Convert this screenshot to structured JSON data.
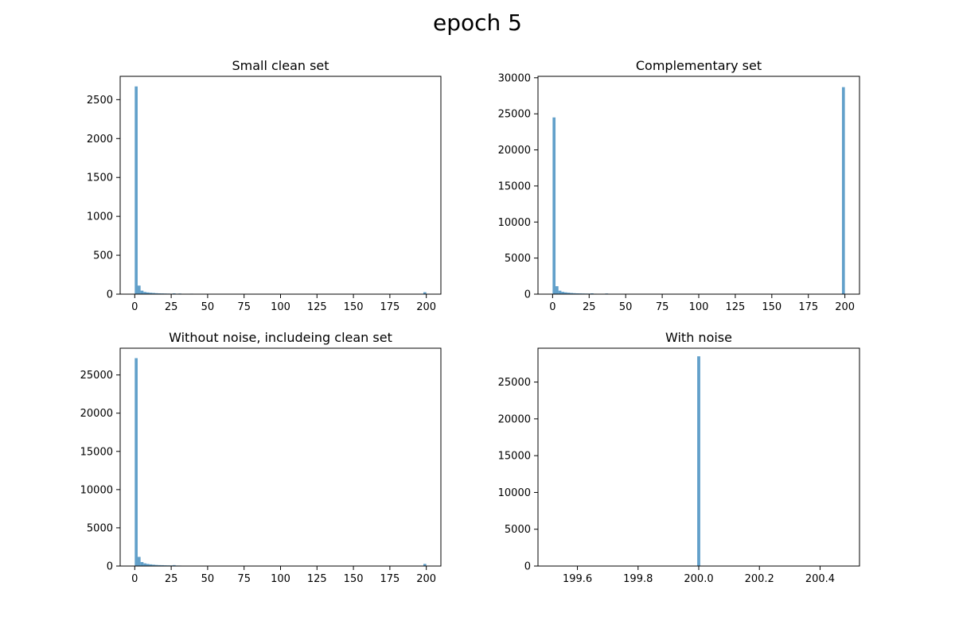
{
  "suptitle": "epoch 5",
  "colors": {
    "bar": "#1f77b4",
    "bar_opacity": 0.7,
    "axes": "#000000",
    "background": "#ffffff"
  },
  "chart_data": [
    {
      "type": "bar",
      "title": "Small clean set",
      "position": "top-left",
      "grid": false,
      "xlim": [
        -10,
        210
      ],
      "ylim": [
        0,
        2800
      ],
      "xticks": [
        0,
        25,
        50,
        75,
        100,
        125,
        150,
        175,
        200
      ],
      "yticks": [
        0,
        500,
        1000,
        1500,
        2000,
        2500
      ],
      "bin_width": 2,
      "bins": [
        {
          "x": 0,
          "value": 2670
        },
        {
          "x": 2,
          "value": 110
        },
        {
          "x": 4,
          "value": 45
        },
        {
          "x": 6,
          "value": 28
        },
        {
          "x": 8,
          "value": 22
        },
        {
          "x": 10,
          "value": 18
        },
        {
          "x": 12,
          "value": 15
        },
        {
          "x": 14,
          "value": 12
        },
        {
          "x": 16,
          "value": 10
        },
        {
          "x": 18,
          "value": 9
        },
        {
          "x": 20,
          "value": 8
        },
        {
          "x": 22,
          "value": 7
        },
        {
          "x": 24,
          "value": 6
        },
        {
          "x": 26,
          "value": 10
        },
        {
          "x": 28,
          "value": 6
        },
        {
          "x": 30,
          "value": 8
        },
        {
          "x": 32,
          "value": 5
        },
        {
          "x": 34,
          "value": 4
        },
        {
          "x": 36,
          "value": 3
        },
        {
          "x": 38,
          "value": 6
        },
        {
          "x": 40,
          "value": 3
        },
        {
          "x": 44,
          "value": 2
        },
        {
          "x": 50,
          "value": 2
        },
        {
          "x": 60,
          "value": 1
        },
        {
          "x": 78,
          "value": 5
        },
        {
          "x": 90,
          "value": 1
        },
        {
          "x": 198,
          "value": 25
        }
      ]
    },
    {
      "type": "bar",
      "title": "Complementary set",
      "position": "top-right",
      "grid": false,
      "xlim": [
        -10,
        210
      ],
      "ylim": [
        0,
        30200
      ],
      "xticks": [
        0,
        25,
        50,
        75,
        100,
        125,
        150,
        175,
        200
      ],
      "yticks": [
        0,
        5000,
        10000,
        15000,
        20000,
        25000,
        30000
      ],
      "bin_width": 2,
      "bins": [
        {
          "x": 0,
          "value": 24500
        },
        {
          "x": 2,
          "value": 1100
        },
        {
          "x": 4,
          "value": 480
        },
        {
          "x": 6,
          "value": 320
        },
        {
          "x": 8,
          "value": 250
        },
        {
          "x": 10,
          "value": 200
        },
        {
          "x": 12,
          "value": 160
        },
        {
          "x": 14,
          "value": 130
        },
        {
          "x": 16,
          "value": 110
        },
        {
          "x": 18,
          "value": 100
        },
        {
          "x": 20,
          "value": 90
        },
        {
          "x": 22,
          "value": 80
        },
        {
          "x": 24,
          "value": 75
        },
        {
          "x": 26,
          "value": 110
        },
        {
          "x": 28,
          "value": 60
        },
        {
          "x": 30,
          "value": 55
        },
        {
          "x": 32,
          "value": 45
        },
        {
          "x": 34,
          "value": 40
        },
        {
          "x": 36,
          "value": 90
        },
        {
          "x": 38,
          "value": 35
        },
        {
          "x": 40,
          "value": 30
        },
        {
          "x": 44,
          "value": 25
        },
        {
          "x": 50,
          "value": 20
        },
        {
          "x": 60,
          "value": 15
        },
        {
          "x": 78,
          "value": 20
        },
        {
          "x": 100,
          "value": 10
        },
        {
          "x": 198,
          "value": 28700
        }
      ]
    },
    {
      "type": "bar",
      "title": "Without noise, includeing clean set",
      "position": "bottom-left",
      "grid": false,
      "xlim": [
        -10,
        210
      ],
      "ylim": [
        0,
        28500
      ],
      "xticks": [
        0,
        25,
        50,
        75,
        100,
        125,
        150,
        175,
        200
      ],
      "yticks": [
        0,
        5000,
        10000,
        15000,
        20000,
        25000
      ],
      "bin_width": 2,
      "bins": [
        {
          "x": 0,
          "value": 27200
        },
        {
          "x": 2,
          "value": 1200
        },
        {
          "x": 4,
          "value": 520
        },
        {
          "x": 6,
          "value": 350
        },
        {
          "x": 8,
          "value": 270
        },
        {
          "x": 10,
          "value": 220
        },
        {
          "x": 12,
          "value": 175
        },
        {
          "x": 14,
          "value": 140
        },
        {
          "x": 16,
          "value": 120
        },
        {
          "x": 18,
          "value": 110
        },
        {
          "x": 20,
          "value": 95
        },
        {
          "x": 22,
          "value": 85
        },
        {
          "x": 24,
          "value": 80
        },
        {
          "x": 26,
          "value": 120
        },
        {
          "x": 28,
          "value": 65
        },
        {
          "x": 30,
          "value": 60
        },
        {
          "x": 32,
          "value": 50
        },
        {
          "x": 34,
          "value": 45
        },
        {
          "x": 36,
          "value": 40
        },
        {
          "x": 38,
          "value": 40
        },
        {
          "x": 40,
          "value": 35
        },
        {
          "x": 44,
          "value": 28
        },
        {
          "x": 50,
          "value": 22
        },
        {
          "x": 60,
          "value": 16
        },
        {
          "x": 78,
          "value": 25
        },
        {
          "x": 100,
          "value": 12
        },
        {
          "x": 198,
          "value": 280
        }
      ]
    },
    {
      "type": "bar",
      "title": "With noise",
      "position": "bottom-right",
      "grid": false,
      "xlim": [
        199.47,
        200.53
      ],
      "ylim": [
        0,
        29600
      ],
      "xticks": [
        199.6,
        199.8,
        200.0,
        200.2,
        200.4
      ],
      "xtick_decimals": 1,
      "yticks": [
        0,
        5000,
        10000,
        15000,
        20000,
        25000
      ],
      "bin_width": 0.01,
      "bins": [
        {
          "x": 199.995,
          "value": 28500
        }
      ]
    }
  ]
}
